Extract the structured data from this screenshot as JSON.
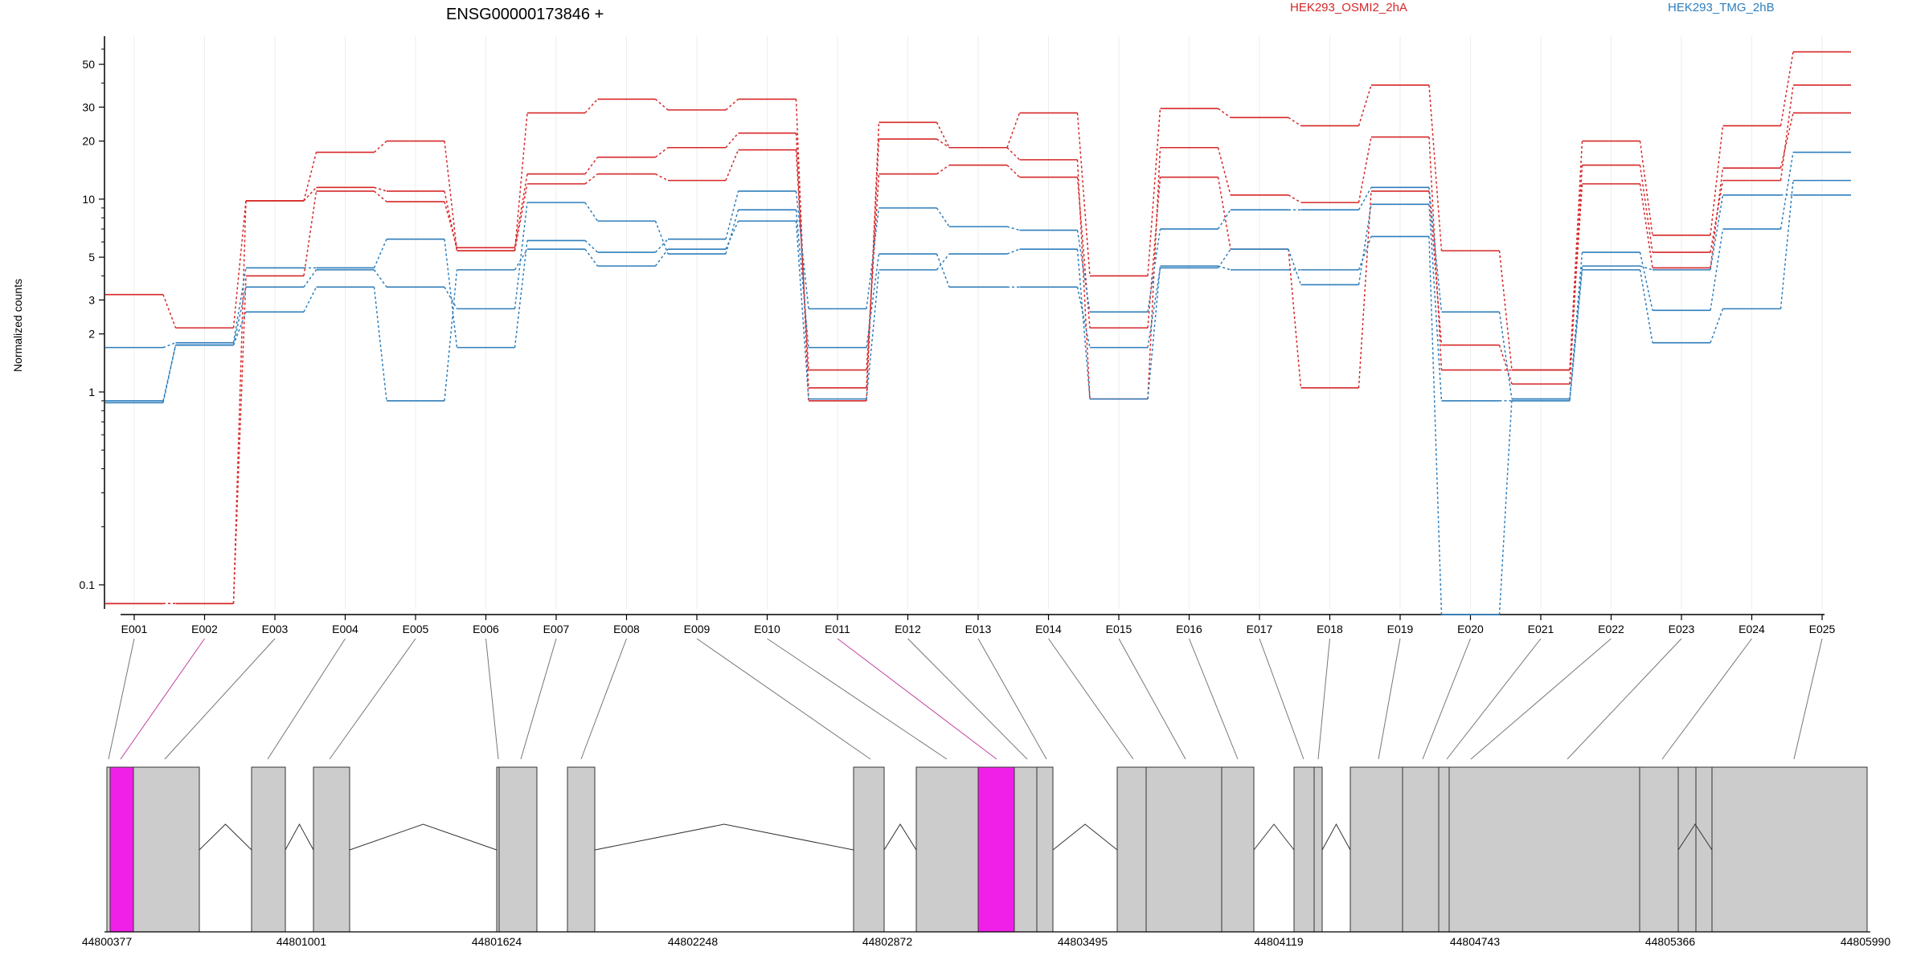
{
  "header": {
    "title": "ENSG00000173846 +",
    "legend": [
      {
        "label": "HEK293_OSMI2_2hA",
        "color": "#d62728"
      },
      {
        "label": "HEK293_TMG_2hB",
        "color": "#2e7ebc"
      }
    ]
  },
  "chart_data": {
    "type": "line",
    "ylabel": "Normalized counts",
    "yscale": "log",
    "ylim": [
      0.075,
      70
    ],
    "yticks": [
      0.1,
      1,
      2,
      3,
      5,
      10,
      20,
      30,
      50
    ],
    "ytick_labels": [
      "0.1",
      "1",
      "2",
      "3",
      "5",
      "10",
      "20",
      "30",
      "50"
    ],
    "categories": [
      "E001",
      "E002",
      "E003",
      "E004",
      "E005",
      "E006",
      "E007",
      "E008",
      "E009",
      "E010",
      "E011",
      "E012",
      "E013",
      "E014",
      "E015",
      "E016",
      "E017",
      "E018",
      "E019",
      "E020",
      "E021",
      "E022",
      "E023",
      "E024",
      "E025"
    ],
    "series": [
      {
        "group": "HEK293_OSMI2_2hA",
        "color": "#d62728",
        "values": [
          0.08,
          0.08,
          9.8,
          17.5,
          20,
          5.4,
          28,
          33,
          29,
          33,
          0.9,
          25,
          18.5,
          28,
          4,
          29.5,
          26.5,
          24,
          39,
          5.4,
          1.3,
          20,
          6.5,
          24,
          58
        ]
      },
      {
        "group": "HEK293_OSMI2_2hA",
        "color": "#d62728",
        "values": [
          3.2,
          2.15,
          9.8,
          11.5,
          11,
          5.4,
          12,
          13.5,
          12.5,
          18,
          1.3,
          13.5,
          15,
          13,
          2.15,
          13,
          5.5,
          1.05,
          11,
          1.75,
          1.1,
          15,
          5.3,
          12.5,
          39
        ]
      },
      {
        "group": "HEK293_OSMI2_2hA",
        "color": "#d62728",
        "values": [
          0.08,
          0.08,
          4,
          11,
          9.7,
          5.6,
          13.5,
          16.5,
          18.5,
          22,
          1.05,
          20.5,
          18.5,
          16,
          0.92,
          18.5,
          10.5,
          9.6,
          21,
          1.3,
          1.3,
          12,
          4.4,
          14.5,
          28
        ]
      },
      {
        "group": "HEK293_TMG_2hB",
        "color": "#2e7ebc",
        "values": [
          1.7,
          1.8,
          4.4,
          4.4,
          6.2,
          1.7,
          6.1,
          5.3,
          6.2,
          11,
          2.7,
          9,
          7.2,
          6.9,
          2.6,
          7,
          8.8,
          8.8,
          11.5,
          2.6,
          0.92,
          5.3,
          2.65,
          7,
          17.5
        ]
      },
      {
        "group": "HEK293_TMG_2hB",
        "color": "#2e7ebc",
        "values": [
          0.88,
          1.75,
          3.5,
          4.3,
          3.5,
          2.7,
          9.6,
          7.7,
          5.2,
          8.8,
          1.7,
          5.2,
          3.5,
          3.5,
          1.7,
          4.4,
          5.5,
          3.6,
          9.4,
          0.9,
          0.9,
          4.3,
          1.8,
          2.7,
          12.5
        ]
      },
      {
        "group": "HEK293_TMG_2hB",
        "color": "#2e7ebc",
        "values": [
          0.9,
          1.75,
          2.6,
          3.5,
          0.9,
          4.3,
          5.5,
          4.5,
          5.5,
          7.7,
          0.92,
          4.3,
          5.2,
          5.5,
          0.92,
          4.5,
          4.3,
          4.3,
          6.4,
          0.07,
          0.92,
          4.5,
          4.3,
          10.5,
          10.5
        ]
      }
    ]
  },
  "gene_model": {
    "coord_ticks": [
      "44800377",
      "44801001",
      "44801624",
      "44802248",
      "44802872",
      "44803495",
      "44804119",
      "44804743",
      "44805366",
      "44805990"
    ],
    "highlight_color": "#f020e8",
    "exon_color": "#cccccc"
  }
}
